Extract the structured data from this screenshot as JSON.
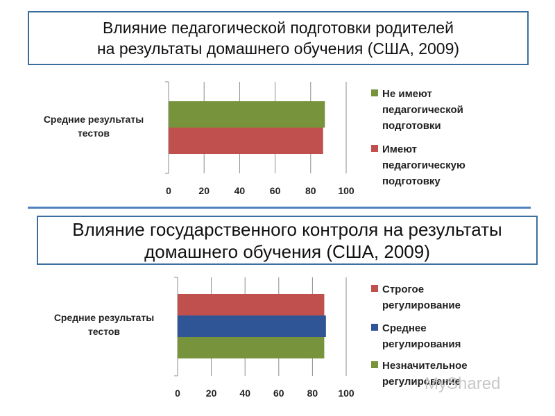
{
  "slide": {
    "title1_line1": "Влияние педагогической подготовки родителей",
    "title1_line2": "на результаты домашнего обучения (США, 2009)",
    "title2_line1": "Влияние государственного контроля на результаты",
    "title2_line2": "домашнего обучения (США, 2009)",
    "watermark": "MyShared"
  },
  "chart_data": [
    {
      "type": "bar",
      "orientation": "horizontal",
      "categories": [
        "Средние результаты тестов"
      ],
      "category_label_lines": [
        "Средние результаты",
        "тестов"
      ],
      "series": [
        {
          "name": "Не имеют педагогической подготовки",
          "name_lines": [
            "Не имеют",
            "педагогической",
            "подготовки"
          ],
          "values": [
            88
          ],
          "color": "#77933c"
        },
        {
          "name": "Имеют педагогическую подготовку",
          "name_lines": [
            "Имеют педагогическую",
            "подготовку"
          ],
          "values": [
            87
          ],
          "color": "#c0504d"
        }
      ],
      "xlim": [
        0,
        100
      ],
      "ticks": [
        "0",
        "20",
        "40",
        "60",
        "80",
        "100"
      ],
      "grid": true,
      "legend": "right"
    },
    {
      "type": "bar",
      "orientation": "horizontal",
      "categories": [
        "Средние результаты тестов"
      ],
      "category_label_lines": [
        "Средние результаты",
        "тестов"
      ],
      "series": [
        {
          "name": "Строгое регулирование",
          "name_lines": [
            "Строгое регулирование"
          ],
          "values": [
            87
          ],
          "color": "#c0504d"
        },
        {
          "name": "Среднее регулирования",
          "name_lines": [
            "Среднее регулирования"
          ],
          "values": [
            88
          ],
          "color": "#2f5597"
        },
        {
          "name": "Незначительное регулирование",
          "name_lines": [
            "Незначительное",
            "регулирование"
          ],
          "values": [
            87
          ],
          "color": "#77933c"
        }
      ],
      "xlim": [
        0,
        100
      ],
      "ticks": [
        "0",
        "20",
        "40",
        "60",
        "80",
        "100"
      ],
      "grid": true,
      "legend": "right"
    }
  ]
}
